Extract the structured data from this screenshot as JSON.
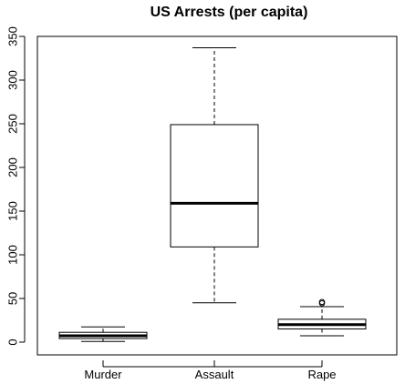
{
  "chart_data": {
    "type": "boxplot",
    "title": "US Arrests (per capita)",
    "xlabel": "",
    "ylabel": "",
    "ylim": [
      0,
      350
    ],
    "yticks": [
      0,
      50,
      100,
      150,
      200,
      250,
      300,
      350
    ],
    "grid": false,
    "categories": [
      "Murder",
      "Assault",
      "Rape"
    ],
    "boxes": [
      {
        "category": "Murder",
        "min": 0.8,
        "q1": 4.1,
        "median": 7.25,
        "q3": 11.25,
        "max": 17.4,
        "outliers": []
      },
      {
        "category": "Assault",
        "min": 45,
        "q1": 109,
        "median": 159,
        "q3": 249,
        "max": 337,
        "outliers": []
      },
      {
        "category": "Rape",
        "min": 7.3,
        "q1": 15.1,
        "median": 20.1,
        "q3": 26.2,
        "max": 40.6,
        "outliers": [
          44.5,
          46.0
        ]
      }
    ]
  }
}
